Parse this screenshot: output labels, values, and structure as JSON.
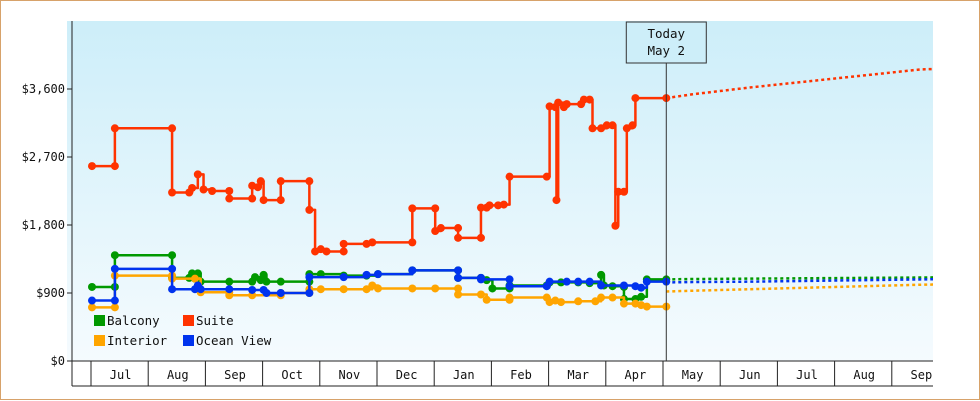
{
  "chart_data": {
    "type": "line",
    "title": "",
    "xlabel": "",
    "ylabel": "",
    "ylim": [
      0,
      4500
    ],
    "y_ticks": [
      {
        "value": 0,
        "label": "$0"
      },
      {
        "value": 900,
        "label": "$900"
      },
      {
        "value": 1800,
        "label": "$1,800"
      },
      {
        "value": 2700,
        "label": "$2,700"
      },
      {
        "value": 3600,
        "label": "$3,600"
      }
    ],
    "x_range_months": [
      0,
      15.5
    ],
    "month_labels": [
      "Jul",
      "Aug",
      "Sep",
      "Oct",
      "Nov",
      "Dec",
      "Jan",
      "Feb",
      "Mar",
      "Apr",
      "May",
      "Jun",
      "Jul",
      "Aug",
      "Sep"
    ],
    "today": {
      "line1": "Today",
      "line2": "May 2",
      "x": 10.04
    },
    "legend": [
      "Balcony",
      "Suite",
      "Interior",
      "Ocean View"
    ],
    "series": [
      {
        "name": "Suite",
        "color": "#ff3300",
        "points": [
          [
            0,
            2580
          ],
          [
            0.4,
            2580
          ],
          [
            0.4,
            3080
          ],
          [
            1.4,
            3080
          ],
          [
            1.4,
            2230
          ],
          [
            1.7,
            2230
          ],
          [
            1.75,
            2290
          ],
          [
            1.85,
            2470
          ],
          [
            1.95,
            2270
          ],
          [
            2.1,
            2250
          ],
          [
            2.4,
            2250
          ],
          [
            2.4,
            2150
          ],
          [
            2.8,
            2150
          ],
          [
            2.8,
            2320
          ],
          [
            2.9,
            2300
          ],
          [
            2.95,
            2380
          ],
          [
            3.0,
            2130
          ],
          [
            3.3,
            2130
          ],
          [
            3.3,
            2380
          ],
          [
            3.8,
            2380
          ],
          [
            3.8,
            2000
          ],
          [
            3.9,
            1450
          ],
          [
            4.0,
            1480
          ],
          [
            4.1,
            1450
          ],
          [
            4.4,
            1450
          ],
          [
            4.4,
            1550
          ],
          [
            4.8,
            1550
          ],
          [
            4.9,
            1570
          ],
          [
            5.6,
            1570
          ],
          [
            5.6,
            2020
          ],
          [
            6.0,
            2020
          ],
          [
            6.0,
            1720
          ],
          [
            6.1,
            1760
          ],
          [
            6.4,
            1760
          ],
          [
            6.4,
            1630
          ],
          [
            6.8,
            1630
          ],
          [
            6.8,
            2030
          ],
          [
            6.9,
            2030
          ],
          [
            6.95,
            2060
          ],
          [
            7.1,
            2060
          ],
          [
            7.2,
            2070
          ],
          [
            7.3,
            2440
          ],
          [
            7.95,
            2440
          ],
          [
            8.0,
            3370
          ],
          [
            8.1,
            3360
          ],
          [
            8.12,
            2130
          ],
          [
            8.15,
            3420
          ],
          [
            8.25,
            3360
          ],
          [
            8.3,
            3400
          ],
          [
            8.55,
            3400
          ],
          [
            8.6,
            3460
          ],
          [
            8.7,
            3460
          ],
          [
            8.75,
            3080
          ],
          [
            8.9,
            3080
          ],
          [
            9.0,
            3120
          ],
          [
            9.1,
            3120
          ],
          [
            9.15,
            1790
          ],
          [
            9.2,
            2240
          ],
          [
            9.3,
            2240
          ],
          [
            9.35,
            3080
          ],
          [
            9.45,
            3120
          ],
          [
            9.5,
            3480
          ],
          [
            10.04,
            3480
          ]
        ],
        "forecast": [
          [
            10.04,
            3480
          ],
          [
            10.5,
            3530
          ],
          [
            11.5,
            3620
          ],
          [
            12.5,
            3700
          ],
          [
            13.5,
            3780
          ],
          [
            14.5,
            3860
          ],
          [
            15.5,
            3880
          ]
        ]
      },
      {
        "name": "Balcony",
        "color": "#009900",
        "points": [
          [
            0,
            980
          ],
          [
            0.4,
            980
          ],
          [
            0.4,
            1400
          ],
          [
            1.4,
            1400
          ],
          [
            1.4,
            1100
          ],
          [
            1.7,
            1100
          ],
          [
            1.75,
            1160
          ],
          [
            1.8,
            1090
          ],
          [
            1.85,
            1160
          ],
          [
            1.9,
            1050
          ],
          [
            2.4,
            1050
          ],
          [
            2.8,
            1050
          ],
          [
            2.85,
            1110
          ],
          [
            2.95,
            1070
          ],
          [
            3.0,
            1140
          ],
          [
            3.05,
            1050
          ],
          [
            3.3,
            1050
          ],
          [
            3.8,
            1050
          ],
          [
            3.8,
            1150
          ],
          [
            4.0,
            1150
          ],
          [
            4.4,
            1130
          ],
          [
            4.8,
            1130
          ],
          [
            5.0,
            1150
          ],
          [
            5.6,
            1200
          ],
          [
            6.4,
            1200
          ],
          [
            6.4,
            1100
          ],
          [
            6.8,
            1100
          ],
          [
            6.9,
            1070
          ],
          [
            7.0,
            960
          ],
          [
            7.3,
            960
          ],
          [
            7.3,
            1000
          ],
          [
            7.95,
            1000
          ],
          [
            8.0,
            1040
          ],
          [
            8.2,
            1040
          ],
          [
            8.5,
            1040
          ],
          [
            8.7,
            1030
          ],
          [
            8.9,
            1140
          ],
          [
            8.95,
            1000
          ],
          [
            9.1,
            990
          ],
          [
            9.3,
            980
          ],
          [
            9.3,
            820
          ],
          [
            9.5,
            820
          ],
          [
            9.6,
            850
          ],
          [
            9.7,
            1080
          ],
          [
            10.04,
            1080
          ]
        ],
        "forecast": [
          [
            10.04,
            1080
          ],
          [
            10.5,
            1085
          ],
          [
            11.5,
            1090
          ],
          [
            12.5,
            1095
          ],
          [
            13.5,
            1100
          ],
          [
            14.5,
            1105
          ],
          [
            15.5,
            1110
          ]
        ]
      },
      {
        "name": "Interior",
        "color": "#ffa500",
        "points": [
          [
            0,
            710
          ],
          [
            0.4,
            710
          ],
          [
            0.4,
            1130
          ],
          [
            1.4,
            1130
          ],
          [
            1.4,
            1090
          ],
          [
            1.8,
            1090
          ],
          [
            1.9,
            910
          ],
          [
            2.4,
            910
          ],
          [
            2.4,
            870
          ],
          [
            2.8,
            870
          ],
          [
            3.3,
            870
          ],
          [
            3.3,
            900
          ],
          [
            3.8,
            900
          ],
          [
            3.8,
            950
          ],
          [
            4.0,
            950
          ],
          [
            4.4,
            950
          ],
          [
            4.8,
            950
          ],
          [
            4.9,
            1000
          ],
          [
            5.0,
            960
          ],
          [
            5.6,
            960
          ],
          [
            6.0,
            960
          ],
          [
            6.4,
            960
          ],
          [
            6.4,
            880
          ],
          [
            6.8,
            880
          ],
          [
            6.9,
            810
          ],
          [
            7.3,
            810
          ],
          [
            7.3,
            840
          ],
          [
            7.95,
            840
          ],
          [
            8.0,
            780
          ],
          [
            8.1,
            800
          ],
          [
            8.2,
            780
          ],
          [
            8.5,
            790
          ],
          [
            8.8,
            790
          ],
          [
            8.9,
            840
          ],
          [
            9.1,
            840
          ],
          [
            9.3,
            760
          ],
          [
            9.5,
            760
          ],
          [
            9.6,
            740
          ],
          [
            9.7,
            720
          ],
          [
            10.04,
            720
          ]
        ],
        "forecast": [
          [
            10.04,
            920
          ],
          [
            10.5,
            930
          ],
          [
            11.5,
            950
          ],
          [
            12.5,
            970
          ],
          [
            13.5,
            990
          ],
          [
            14.5,
            1010
          ],
          [
            15.5,
            1020
          ]
        ]
      },
      {
        "name": "Ocean View",
        "color": "#0033ee",
        "points": [
          [
            0,
            800
          ],
          [
            0.4,
            800
          ],
          [
            0.4,
            1220
          ],
          [
            1.4,
            1220
          ],
          [
            1.4,
            950
          ],
          [
            1.8,
            950
          ],
          [
            1.85,
            1000
          ],
          [
            1.9,
            950
          ],
          [
            2.4,
            950
          ],
          [
            2.8,
            940
          ],
          [
            3.0,
            940
          ],
          [
            3.05,
            900
          ],
          [
            3.3,
            900
          ],
          [
            3.8,
            900
          ],
          [
            3.8,
            1110
          ],
          [
            4.4,
            1110
          ],
          [
            4.8,
            1140
          ],
          [
            5.0,
            1150
          ],
          [
            5.6,
            1200
          ],
          [
            6.4,
            1200
          ],
          [
            6.4,
            1100
          ],
          [
            6.8,
            1100
          ],
          [
            6.8,
            1080
          ],
          [
            7.3,
            1080
          ],
          [
            7.3,
            990
          ],
          [
            7.95,
            990
          ],
          [
            8.0,
            1050
          ],
          [
            8.3,
            1050
          ],
          [
            8.5,
            1050
          ],
          [
            8.7,
            1050
          ],
          [
            8.9,
            1000
          ],
          [
            9.3,
            1000
          ],
          [
            9.5,
            990
          ],
          [
            9.6,
            970
          ],
          [
            9.7,
            1050
          ],
          [
            10.04,
            1050
          ]
        ],
        "forecast": [
          [
            10.04,
            1040
          ],
          [
            10.5,
            1045
          ],
          [
            11.5,
            1050
          ],
          [
            12.5,
            1060
          ],
          [
            13.5,
            1070
          ],
          [
            14.5,
            1080
          ],
          [
            15.5,
            1090
          ]
        ]
      }
    ]
  }
}
